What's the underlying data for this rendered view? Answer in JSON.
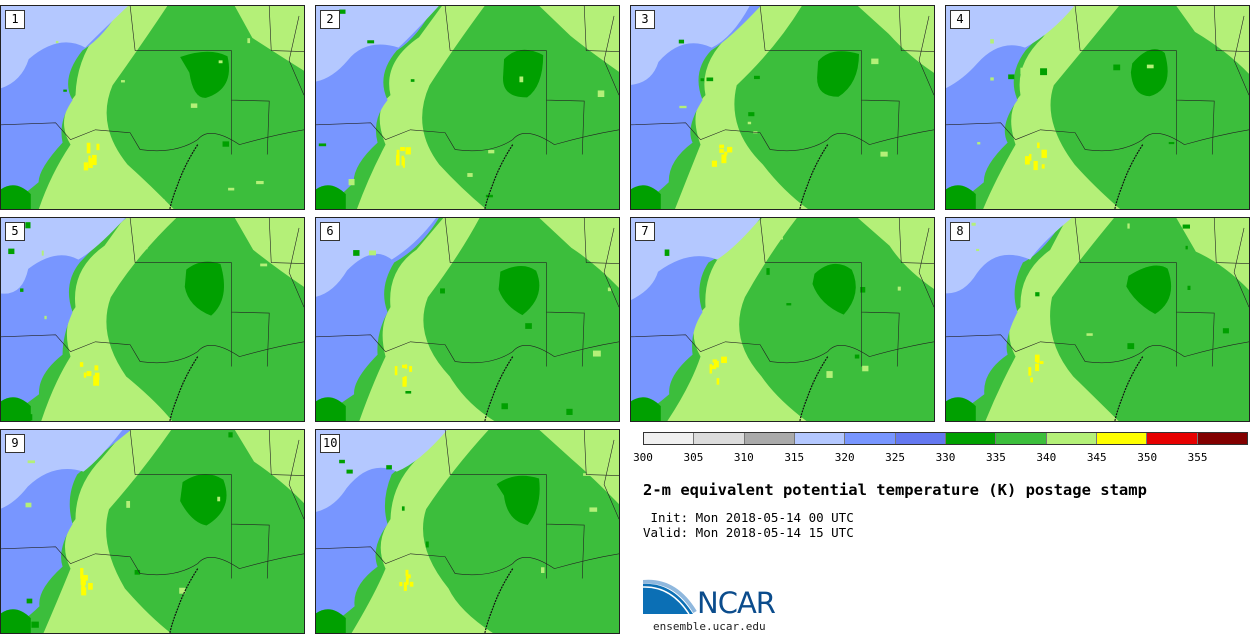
{
  "panels": [
    {
      "label": "1"
    },
    {
      "label": "2"
    },
    {
      "label": "3"
    },
    {
      "label": "4"
    },
    {
      "label": "5"
    },
    {
      "label": "6"
    },
    {
      "label": "7"
    },
    {
      "label": "8"
    },
    {
      "label": "9"
    },
    {
      "label": "10"
    }
  ],
  "colorbar": {
    "colors": [
      "#f0f0f0",
      "#dcdcdc",
      "#aaaaaa",
      "#b4c8ff",
      "#7896ff",
      "#6478f0",
      "#00a000",
      "#3cbe3c",
      "#b4f078",
      "#ffff00",
      "#e60000",
      "#820000"
    ],
    "tick_labels": [
      "300",
      "305",
      "310",
      "315",
      "320",
      "325",
      "330",
      "335",
      "340",
      "345",
      "350",
      "355"
    ]
  },
  "title": "2-m equivalent potential temperature (K) postage stamp",
  "init_text": " Init: Mon 2018-05-14 00 UTC",
  "valid_text": "Valid: Mon 2018-05-14 15 UTC",
  "logo": {
    "text": "NCAR"
  },
  "site": "ensemble.ucar.edu"
}
